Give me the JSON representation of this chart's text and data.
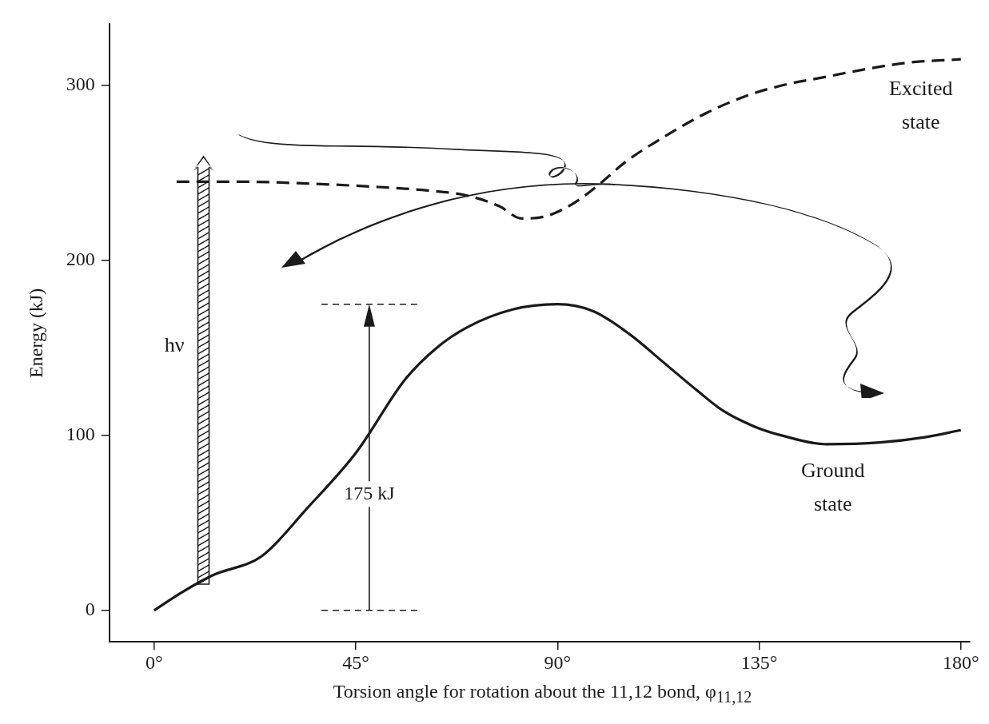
{
  "chart_data": {
    "type": "line",
    "xlabel": "Torsion angle for rotation about the 11,12 bond, φ$_{11,12}$",
    "ylabel": "Energy (kJ)",
    "series": [
      {
        "name": "Excited state",
        "color": "#1a1a1a",
        "line_style": "dashed",
        "x": [
          5,
          20,
          34,
          50,
          61,
          70,
          77,
          82,
          87,
          91,
          95,
          100,
          105,
          114,
          123,
          132,
          140,
          150,
          158,
          168,
          180
        ],
        "values": [
          245,
          245,
          244,
          242,
          240,
          237,
          231,
          224,
          225,
          229,
          235,
          245,
          256,
          271,
          284,
          294,
          300,
          305,
          309,
          313,
          315
        ]
      },
      {
        "name": "Ground state",
        "color": "#1a1a1a",
        "line_style": "solid",
        "x": [
          0,
          6,
          13,
          24,
          34,
          45,
          56,
          63,
          70,
          80,
          90,
          98,
          106,
          114,
          121,
          127,
          134,
          140,
          150,
          162,
          172,
          180
        ],
        "values": [
          0,
          10,
          20,
          31,
          58,
          90,
          132,
          150,
          162,
          172,
          175,
          171,
          158,
          141,
          126,
          114,
          105,
          100,
          95,
          96,
          99,
          103
        ]
      }
    ],
    "annotations": [
      "hν",
      "175 kJ"
    ],
    "xlim": [
      -10,
      182
    ],
    "ylim": [
      -18,
      335
    ],
    "xticks": [
      {
        "value": 0,
        "label": "0°"
      },
      {
        "value": 45,
        "label": "45°"
      },
      {
        "value": 90,
        "label": "90°"
      },
      {
        "value": 135,
        "label": "135°"
      },
      {
        "value": 180,
        "label": "180°"
      }
    ],
    "yticks": [
      0,
      100,
      200,
      300
    ],
    "grid": false,
    "legend": false,
    "marker": "none"
  }
}
